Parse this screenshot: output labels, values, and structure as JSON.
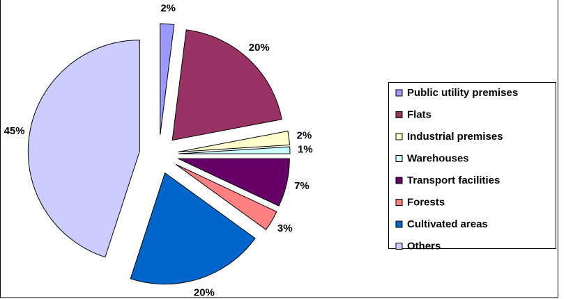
{
  "chart_data": {
    "type": "pie",
    "categories": [
      "Public utility premises",
      "Flats",
      "Industrial premises",
      "Warehouses",
      "Transport facilities",
      "Forests",
      "Cultivated areas",
      "Others"
    ],
    "values": [
      2,
      20,
      2,
      1,
      7,
      3,
      20,
      45
    ],
    "value_labels": [
      "2%",
      "20%",
      "2%",
      "1%",
      "7%",
      "3%",
      "20%",
      "45%"
    ],
    "colors": [
      "#9999ff",
      "#993366",
      "#ffffcc",
      "#ccffff",
      "#660066",
      "#ff8080",
      "#0066cc",
      "#ccccff"
    ],
    "legend": "right"
  }
}
